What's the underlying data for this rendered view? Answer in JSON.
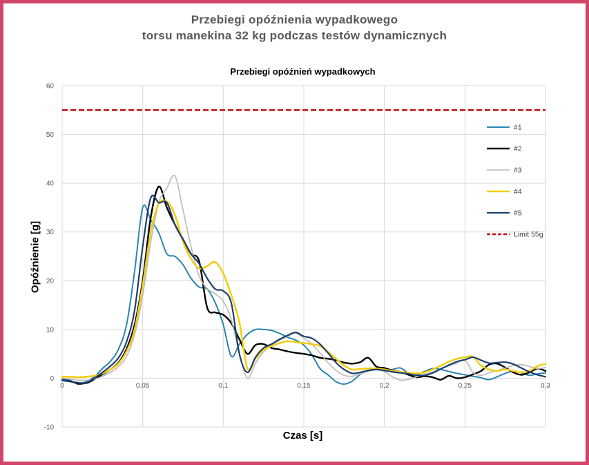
{
  "frame": {
    "border_color": "#d04569"
  },
  "header": {
    "title_line1": "Przebiegi opóźnienia wypadkowego",
    "title_line2": "torsu manekina 32 kg podczas testów dynamicznych"
  },
  "chart_data": {
    "type": "line",
    "title": "Przebiegi opóźnień wypadkowych",
    "xlabel": "Czas [s]",
    "ylabel": "Opóźnienie [g]",
    "xlim": [
      0,
      0.3
    ],
    "ylim": [
      -10,
      60
    ],
    "grid": true,
    "legend_position": "inside-right",
    "x_ticks": [
      0,
      0.05,
      0.1,
      0.15,
      0.2,
      0.25,
      0.3
    ],
    "x_tick_labels": [
      "0",
      "0,05",
      "0,1",
      "0,15",
      "0,2",
      "0,25",
      "0,3"
    ],
    "y_ticks": [
      -10,
      0,
      10,
      20,
      30,
      40,
      50,
      60
    ],
    "y_tick_labels": [
      "-10",
      "0",
      "10",
      "20",
      "30",
      "40",
      "50",
      "60"
    ],
    "x": [
      0,
      0.005,
      0.01,
      0.015,
      0.02,
      0.025,
      0.03,
      0.035,
      0.04,
      0.045,
      0.05,
      0.055,
      0.06,
      0.065,
      0.07,
      0.075,
      0.08,
      0.085,
      0.09,
      0.095,
      0.1,
      0.105,
      0.11,
      0.115,
      0.12,
      0.125,
      0.13,
      0.135,
      0.14,
      0.145,
      0.15,
      0.155,
      0.16,
      0.165,
      0.17,
      0.175,
      0.18,
      0.185,
      0.19,
      0.195,
      0.2,
      0.205,
      0.21,
      0.215,
      0.22,
      0.225,
      0.23,
      0.235,
      0.24,
      0.245,
      0.25,
      0.255,
      0.26,
      0.265,
      0.27,
      0.275,
      0.28,
      0.285,
      0.29,
      0.295,
      0.3
    ],
    "series": [
      {
        "name": "#1",
        "color": "#2b84b0",
        "width": 2.0,
        "values": [
          -0.5,
          -0.7,
          -1.0,
          -0.7,
          0.3,
          2.0,
          3.5,
          6.0,
          11.0,
          22.0,
          35.0,
          32.5,
          29.8,
          25.5,
          25.0,
          23.3,
          20.5,
          18.7,
          18.3,
          15.5,
          11.0,
          4.5,
          7.0,
          9.0,
          10.0,
          10.0,
          9.8,
          9.2,
          8.4,
          7.8,
          6.8,
          4.8,
          2.0,
          0.7,
          -0.7,
          -1.2,
          -0.6,
          0.8,
          1.5,
          1.8,
          1.5,
          1.8,
          2.1,
          1.0,
          0.7,
          1.4,
          2.0,
          1.8,
          1.4,
          1.0,
          0.7,
          0.4,
          0.1,
          -0.3,
          0.3,
          1.0,
          1.5,
          1.1,
          0.6,
          0.9,
          1.1
        ]
      },
      {
        "name": "#2",
        "color": "#000000",
        "width": 2.4,
        "values": [
          -0.3,
          -0.6,
          -1.0,
          -1.0,
          -0.2,
          0.8,
          1.8,
          3.2,
          6.0,
          11.0,
          20.0,
          33.0,
          39.3,
          35.0,
          31.5,
          28.5,
          25.5,
          24.0,
          14.5,
          13.5,
          13.0,
          11.3,
          8.0,
          5.0,
          6.8,
          7.0,
          6.2,
          5.9,
          5.5,
          5.2,
          5.0,
          4.7,
          4.2,
          4.0,
          3.7,
          3.2,
          3.0,
          3.3,
          4.2,
          2.4,
          2.1,
          1.6,
          1.3,
          0.7,
          0.2,
          0.4,
          0.2,
          -0.3,
          0.5,
          0.0,
          0.2,
          0.8,
          1.5,
          2.8,
          3.0,
          2.2,
          1.2,
          0.7,
          1.2,
          2.0,
          1.5
        ]
      },
      {
        "name": "#3",
        "color": "#b9b9b9",
        "width": 1.6,
        "values": [
          0.0,
          -0.2,
          -0.4,
          -0.4,
          -0.2,
          0.4,
          1.2,
          2.4,
          4.5,
          9.0,
          17.0,
          28.0,
          36.0,
          39.0,
          41.5,
          34.5,
          27.0,
          21.0,
          18.4,
          17.3,
          15.8,
          12.0,
          5.0,
          0.0,
          3.1,
          5.4,
          6.8,
          7.8,
          8.6,
          9.2,
          8.2,
          7.0,
          5.2,
          3.2,
          1.6,
          0.6,
          0.4,
          0.9,
          1.4,
          1.7,
          1.3,
          0.3,
          -0.4,
          -0.2,
          0.3,
          0.8,
          1.3,
          1.9,
          2.5,
          3.1,
          3.7,
          1.2,
          0.6,
          1.1,
          1.6,
          2.1,
          2.6,
          2.8,
          2.4,
          2.0,
          2.2
        ]
      },
      {
        "name": "#4",
        "color": "#f2cf15",
        "width": 2.6,
        "values": [
          0.3,
          0.3,
          0.2,
          0.3,
          0.5,
          1.0,
          1.8,
          3.0,
          5.5,
          10.0,
          19.0,
          30.0,
          35.8,
          36.2,
          33.5,
          28.0,
          24.5,
          22.5,
          23.0,
          23.8,
          21.5,
          17.0,
          11.5,
          2.0,
          4.0,
          5.8,
          6.6,
          7.2,
          7.6,
          7.4,
          7.2,
          7.0,
          6.6,
          5.4,
          4.0,
          2.6,
          1.8,
          1.9,
          2.0,
          2.0,
          1.8,
          1.5,
          1.3,
          1.1,
          1.0,
          1.2,
          1.8,
          2.6,
          3.4,
          4.0,
          4.3,
          4.4,
          2.6,
          1.8,
          1.5,
          1.8,
          1.5,
          1.2,
          1.5,
          2.5,
          2.9
        ]
      },
      {
        "name": "#5",
        "color": "#1d3f6e",
        "width": 2.2,
        "values": [
          -0.3,
          -0.5,
          -1.2,
          -0.9,
          0.0,
          1.2,
          2.5,
          4.2,
          7.5,
          14.0,
          27.0,
          37.0,
          36.0,
          36.0,
          31.5,
          28.5,
          25.5,
          23.5,
          20.5,
          18.3,
          17.9,
          15.4,
          5.0,
          1.2,
          4.3,
          6.2,
          7.0,
          8.0,
          8.8,
          9.4,
          8.6,
          8.2,
          7.0,
          5.2,
          3.2,
          1.8,
          1.0,
          1.2,
          1.6,
          1.8,
          1.6,
          1.3,
          1.1,
          0.9,
          0.6,
          0.6,
          1.1,
          1.9,
          2.7,
          3.4,
          3.8,
          4.3,
          3.7,
          3.1,
          3.2,
          3.3,
          2.9,
          2.1,
          1.3,
          0.7,
          0.3
        ]
      }
    ],
    "limit_line": {
      "label": "Limit 55g",
      "value": 55,
      "color": "#c00000",
      "style": "dashed"
    },
    "colors": {
      "gridline": "#d9d9d9",
      "tick_text": "#595959",
      "title_text": "#58595b"
    }
  }
}
